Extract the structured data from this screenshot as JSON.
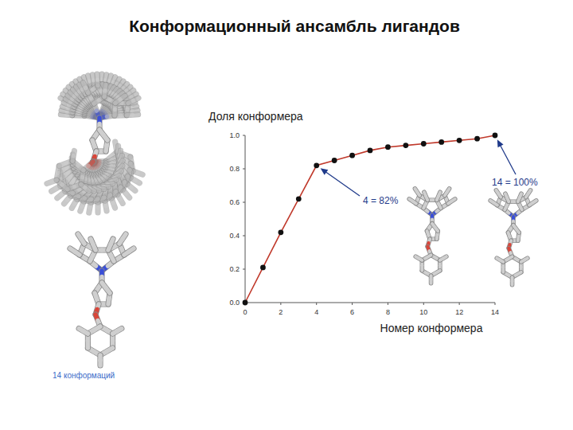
{
  "title": "Конформационный ансамбль лигандов",
  "caption": "14 конформаций",
  "chart_data": {
    "type": "line",
    "y_label": "Доля конформера",
    "x_label": "Номер конформера",
    "x": [
      0,
      1,
      2,
      3,
      4,
      5,
      6,
      7,
      8,
      9,
      10,
      11,
      12,
      13,
      14
    ],
    "values": [
      0,
      0.21,
      0.42,
      0.62,
      0.82,
      0.85,
      0.88,
      0.91,
      0.93,
      0.94,
      0.95,
      0.96,
      0.97,
      0.98,
      1.0
    ],
    "color": "#c0392b",
    "marker": "circle",
    "xlim": [
      0,
      14
    ],
    "ylim": [
      0,
      1
    ],
    "xticks": [
      0,
      2,
      4,
      6,
      8,
      10,
      12,
      14
    ],
    "yticks": [
      {
        "value": 0,
        "label": "0.0"
      },
      0.2,
      0.4,
      0.6,
      0.8,
      {
        "value": 1,
        "label": "1.0"
      }
    ],
    "annotations": [
      {
        "text": "4 = 82%",
        "x": 4,
        "y": 0.82
      },
      {
        "text": "14 = 100%",
        "x": 14,
        "y": 1.0
      }
    ]
  }
}
